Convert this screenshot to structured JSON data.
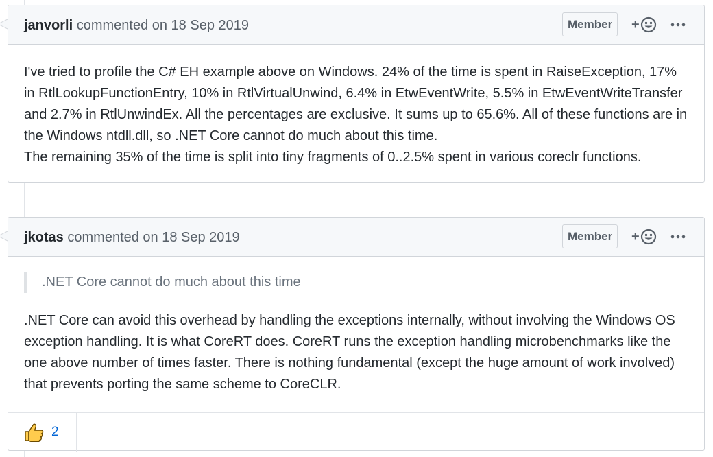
{
  "comments": [
    {
      "author": "janvorli",
      "meta": "commented on 18 Sep 2019",
      "badge": "Member",
      "reaction_plus": "+",
      "body_lines": [
        "I've tried to profile the C# EH example above on Windows. 24% of the time is spent in RaiseException, 17% in RtlLookupFunctionEntry, 10% in RtlVirtualUnwind, 6.4% in EtwEventWrite, 5.5% in EtwEventWriteTransfer and 2.7% in RtlUnwindEx. All the percentages are exclusive. It sums up to 65.6%. All of these functions are in the Windows ntdll.dll, so .NET Core cannot do much about this time.",
        "The remaining 35% of the time is split into tiny fragments of 0..2.5% spent in various coreclr functions."
      ]
    },
    {
      "author": "jkotas",
      "meta": "commented on 18 Sep 2019",
      "badge": "Member",
      "reaction_plus": "+",
      "quote": ".NET Core cannot do much about this time",
      "body": ".NET Core can avoid this overhead by handling the exceptions internally, without involving the Windows OS exception handling. It is what CoreRT does. CoreRT runs the exception handling microbenchmarks like the one above number of times faster. There is nothing fundamental (except the huge amount of work involved) that prevents porting the same scheme to CoreCLR.",
      "reactions": {
        "thumbs_up_count": "2"
      }
    }
  ],
  "icons": {
    "smiley": "smiley-icon",
    "kebab": "kebab-horizontal-icon",
    "thumbs_up": "thumbs-up-icon"
  },
  "colors": {
    "link_blue": "#0366d6",
    "thumb_yellow": "#ffcc4d",
    "border": "#d1d5da"
  }
}
